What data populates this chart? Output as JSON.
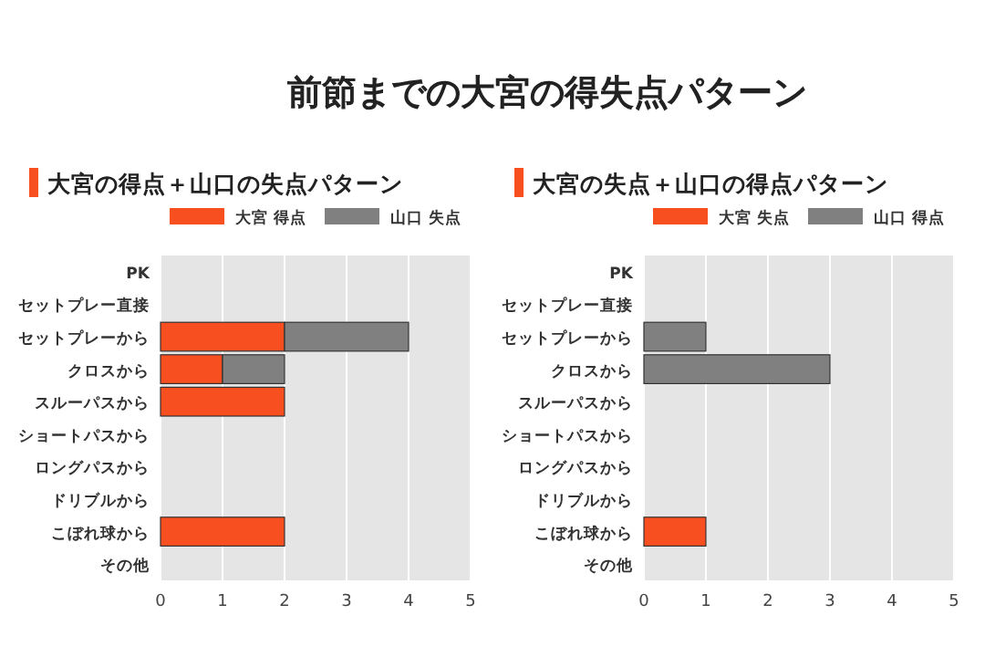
{
  "chart_data": [
    {
      "type": "bar",
      "orientation": "horizontal",
      "stacked": true,
      "title": "大宮の得点＋山口の失点パターン",
      "annotations": [
        "前節までの大宮の得失点パターン"
      ],
      "categories": [
        "PK",
        "セットプレー直接",
        "セットプレーから",
        "クロスから",
        "スルーパスから",
        "ショートパスから",
        "ロングパスから",
        "ドリブルから",
        "こぼれ球から",
        "その他"
      ],
      "series": [
        {
          "name": "大宮 得点",
          "color": "#f74f1f",
          "values": [
            0,
            0,
            2,
            1,
            2,
            0,
            0,
            0,
            2,
            0
          ]
        },
        {
          "name": "山口 失点",
          "color": "#808080",
          "values": [
            0,
            0,
            2,
            1,
            0,
            0,
            0,
            0,
            0,
            0
          ]
        }
      ],
      "xlim": [
        0,
        5
      ],
      "xticks": [
        0,
        1,
        2,
        3,
        4,
        5
      ],
      "grid": "x",
      "legend": "top"
    },
    {
      "type": "bar",
      "orientation": "horizontal",
      "stacked": true,
      "title": "大宮の失点＋山口の得点パターン",
      "categories": [
        "PK",
        "セットプレー直接",
        "セットプレーから",
        "クロスから",
        "スルーパスから",
        "ショートパスから",
        "ロングパスから",
        "ドリブルから",
        "こぼれ球から",
        "その他"
      ],
      "series": [
        {
          "name": "大宮 失点",
          "color": "#f74f1f",
          "values": [
            0,
            0,
            0,
            0,
            0,
            0,
            0,
            0,
            1,
            0
          ]
        },
        {
          "name": "山口 得点",
          "color": "#808080",
          "values": [
            0,
            0,
            1,
            3,
            0,
            0,
            0,
            0,
            0,
            0
          ]
        }
      ],
      "xlim": [
        0,
        5
      ],
      "xticks": [
        0,
        1,
        2,
        3,
        4,
        5
      ],
      "grid": "x",
      "legend": "top"
    }
  ]
}
